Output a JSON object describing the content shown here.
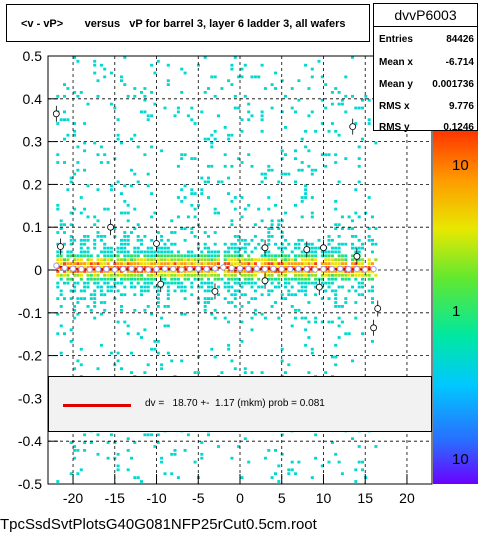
{
  "title": "<v - vP>       versus   vP for barrel 3, layer 6 ladder 3, all wafers",
  "stats": {
    "name": "dvvP6003",
    "rows": [
      {
        "key": "Entries",
        "value": "84426"
      },
      {
        "key": "Mean x",
        "value": "-6.714"
      },
      {
        "key": "Mean y",
        "value": "0.001736"
      },
      {
        "key": "RMS x",
        "value": "9.776"
      },
      {
        "key": "RMS y",
        "value": "0.1246"
      }
    ]
  },
  "fit": {
    "text": "dv =   18.70 +-  1.17 (mkm) prob = 0.081",
    "color": "#e00000"
  },
  "footer": "TpcSsdSvtPlotsG40G081NFP25rCut0.5cm.root",
  "chart_data": {
    "type": "heatmap",
    "x_ticks": [
      -20,
      -15,
      -10,
      -5,
      0,
      5,
      10,
      15,
      20
    ],
    "y_ticks": [
      0.5,
      0.4,
      0.3,
      0.2,
      0.1,
      0,
      -0.1,
      -0.2,
      -0.3,
      -0.4,
      -0.5
    ],
    "x_tick_labels": [
      "-20",
      "-15",
      "-10",
      "-5",
      "0",
      "5",
      "10",
      "15",
      "20"
    ],
    "y_tick_labels": [
      "0.5",
      "0.4",
      "0.3",
      "0.2",
      "0.1",
      "0",
      "-0.1",
      "-0.2",
      "-0.3",
      "-0.4",
      "-0.5"
    ],
    "xlim": [
      -23,
      23
    ],
    "ylim": [
      -0.5,
      0.5
    ],
    "z_scale": "log",
    "z_tick_labels": [
      "10",
      "1",
      "10"
    ],
    "grid": true,
    "data_x_range": [
      -22,
      16.5
    ],
    "profile_color": "#e00000",
    "profile_points": [
      {
        "x": -22,
        "y": 0.01
      },
      {
        "x": -21,
        "y": 0.005
      },
      {
        "x": -20,
        "y": 0.003
      },
      {
        "x": -19,
        "y": 0.002
      },
      {
        "x": -18,
        "y": 0.001
      },
      {
        "x": -17,
        "y": 0.002
      },
      {
        "x": -16,
        "y": 0.002
      },
      {
        "x": -15,
        "y": 0.001
      },
      {
        "x": -14,
        "y": 0.002
      },
      {
        "x": -13,
        "y": 0.003
      },
      {
        "x": -12,
        "y": 0.002
      },
      {
        "x": -11,
        "y": 0.001
      },
      {
        "x": -10,
        "y": 0.002
      },
      {
        "x": -9,
        "y": 0.003
      },
      {
        "x": -8,
        "y": 0.002
      },
      {
        "x": -7,
        "y": 0.001
      },
      {
        "x": -6,
        "y": 0.002
      },
      {
        "x": -5,
        "y": 0.003
      },
      {
        "x": -4,
        "y": 0.002
      },
      {
        "x": -3,
        "y": 0.004
      },
      {
        "x": -2,
        "y": 0.006
      },
      {
        "x": -1,
        "y": 0.005
      },
      {
        "x": 0,
        "y": 0.004
      },
      {
        "x": 1,
        "y": 0.003
      },
      {
        "x": 2,
        "y": 0.003
      },
      {
        "x": 3,
        "y": 0.002
      },
      {
        "x": 4,
        "y": 0.003
      },
      {
        "x": 5,
        "y": 0.002
      },
      {
        "x": 6,
        "y": 0.002
      },
      {
        "x": 7,
        "y": 0.003
      },
      {
        "x": 8,
        "y": 0.002
      },
      {
        "x": 9,
        "y": 0.001
      },
      {
        "x": 10,
        "y": 0.002
      },
      {
        "x": 11,
        "y": 0.002
      },
      {
        "x": 12,
        "y": 0.003
      },
      {
        "x": 13,
        "y": 0.002
      },
      {
        "x": 14,
        "y": 0.002
      },
      {
        "x": 15,
        "y": 0.001
      },
      {
        "x": 16,
        "y": 0.002
      }
    ],
    "outlier_points": [
      {
        "x": -22,
        "y": 0.365
      },
      {
        "x": -21.5,
        "y": 0.055
      },
      {
        "x": -15.5,
        "y": 0.1
      },
      {
        "x": -10,
        "y": 0.062
      },
      {
        "x": -9.5,
        "y": -0.033
      },
      {
        "x": -3,
        "y": -0.05
      },
      {
        "x": 3,
        "y": 0.052
      },
      {
        "x": 3,
        "y": -0.025
      },
      {
        "x": 8,
        "y": 0.048
      },
      {
        "x": 9.5,
        "y": -0.04
      },
      {
        "x": 10,
        "y": 0.052
      },
      {
        "x": 13.5,
        "y": 0.335
      },
      {
        "x": 14,
        "y": 0.032
      },
      {
        "x": 16,
        "y": -0.135
      },
      {
        "x": 16.5,
        "y": -0.09
      }
    ]
  }
}
